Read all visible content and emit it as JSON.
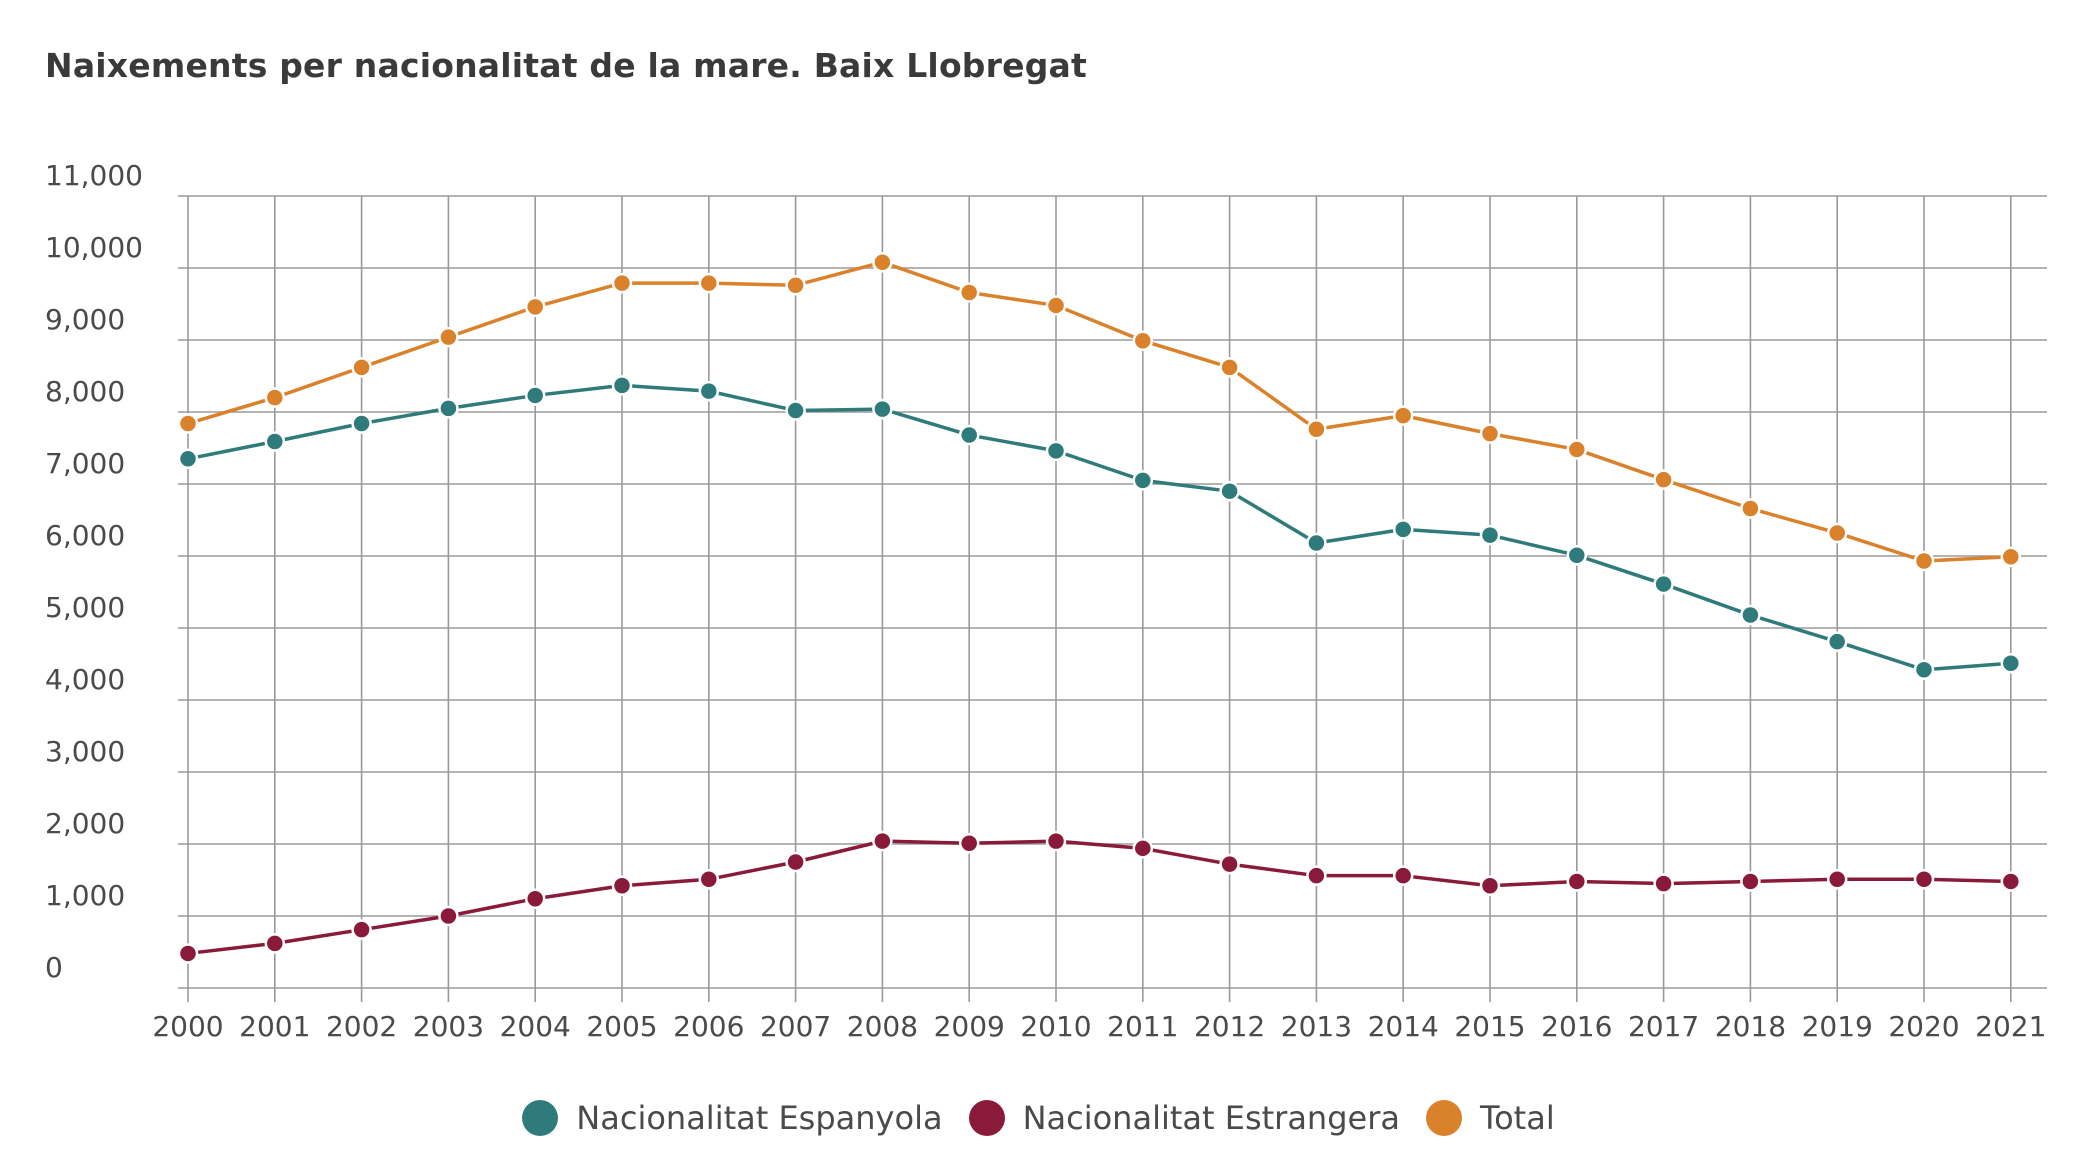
{
  "chart_data": {
    "type": "line",
    "title": "Naixements per nacionalitat de la mare. Baix Llobregat",
    "xlabel": "",
    "ylabel": "",
    "ylim": [
      0,
      11000
    ],
    "yticks": [
      0,
      1000,
      2000,
      3000,
      4000,
      5000,
      6000,
      7000,
      8000,
      9000,
      10000,
      11000
    ],
    "ytick_labels": [
      "0",
      "1,000",
      "2,000",
      "3,000",
      "4,000",
      "5,000",
      "6,000",
      "7,000",
      "8,000",
      "9,000",
      "10,000",
      "11,000"
    ],
    "x": [
      "2000",
      "2001",
      "2002",
      "2003",
      "2004",
      "2005",
      "2006",
      "2007",
      "2008",
      "2009",
      "2010",
      "2011",
      "2012",
      "2013",
      "2014",
      "2015",
      "2016",
      "2017",
      "2018",
      "2019",
      "2020",
      "2021"
    ],
    "grid": true,
    "legend_position": "bottom",
    "series": [
      {
        "name": "Nacionalitat Espanyola",
        "color": "#2f7b7b",
        "values": [
          7350,
          7590,
          7840,
          8050,
          8230,
          8370,
          8290,
          8020,
          8040,
          7680,
          7460,
          7050,
          6900,
          6180,
          6370,
          6290,
          6010,
          5610,
          5180,
          4810,
          4420,
          4510
        ]
      },
      {
        "name": "Nacionalitat Estrangera",
        "color": "#8a1a3a",
        "values": [
          480,
          620,
          810,
          1000,
          1240,
          1420,
          1510,
          1750,
          2040,
          2010,
          2040,
          1940,
          1720,
          1560,
          1560,
          1420,
          1480,
          1450,
          1480,
          1510,
          1510,
          1480
        ]
      },
      {
        "name": "Total",
        "color": "#d9822b",
        "values": [
          7840,
          8200,
          8620,
          9040,
          9460,
          9790,
          9790,
          9760,
          10080,
          9660,
          9480,
          8990,
          8620,
          7760,
          7950,
          7700,
          7480,
          7060,
          6660,
          6320,
          5930,
          5990
        ]
      }
    ]
  }
}
